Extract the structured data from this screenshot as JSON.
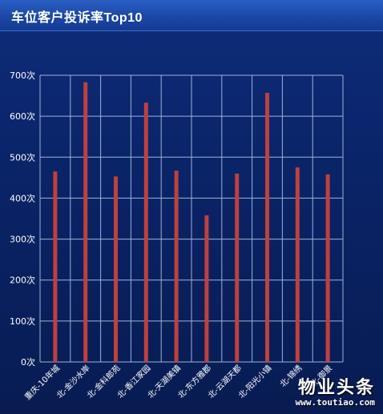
{
  "title": "车位客户投诉率Top10",
  "chart_data": {
    "type": "bar",
    "title": "车位客户投诉率Top10",
    "categories": [
      "重庆-10年城",
      "北-金沙水岸",
      "北-金科郎苑",
      "北-香江家园",
      "北-天湖美镇",
      "北-东方雅郡",
      "北-云湖天都",
      "北-阳光小镇",
      "北-锦绣",
      "北-御景"
    ],
    "values": [
      465,
      683,
      453,
      633,
      467,
      358,
      460,
      657,
      475,
      458
    ],
    "ylim": [
      0,
      700
    ],
    "yticks": [
      "0次",
      "100次",
      "200次",
      "300次",
      "400次",
      "500次",
      "600次",
      "700次"
    ],
    "ytick_values": [
      0,
      100,
      200,
      300,
      400,
      500,
      600,
      700
    ],
    "grid": true,
    "xlabel": "",
    "ylabel": ""
  },
  "watermark": {
    "main": "物业头条",
    "sub": "www.toutiao.com"
  },
  "colors": {
    "bar": "#c0403c",
    "grid": "#9fb2d8",
    "axis_text": "#ffffff"
  }
}
